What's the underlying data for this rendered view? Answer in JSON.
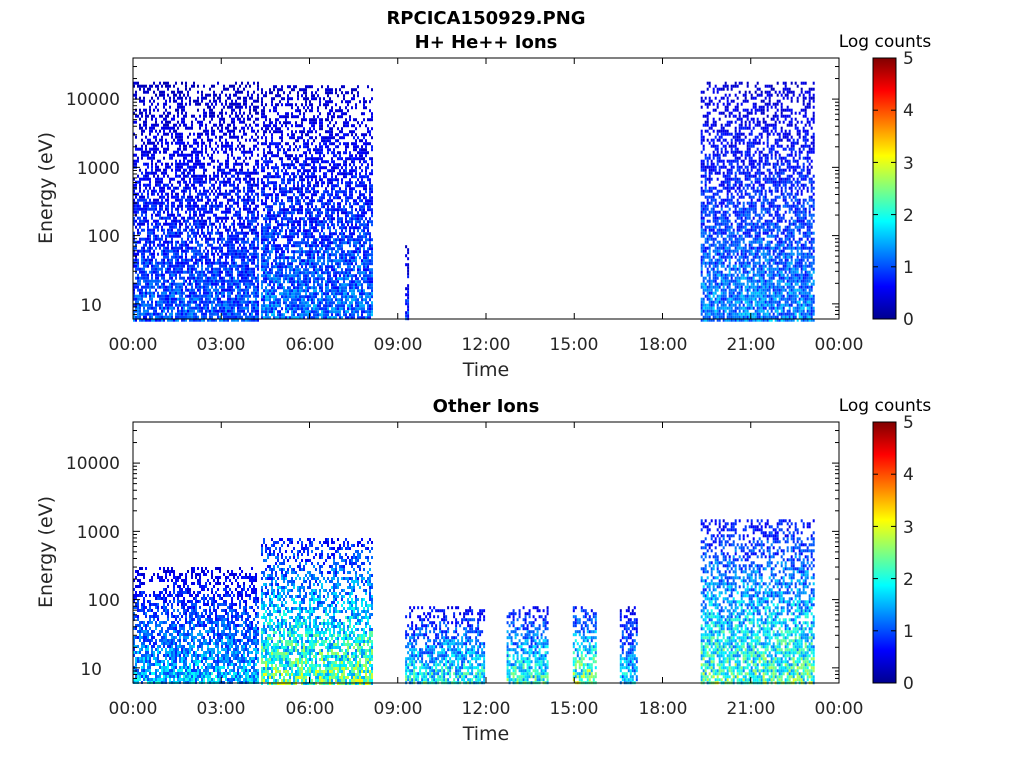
{
  "figure": {
    "title": "RPCICA150929.PNG"
  },
  "colorbar": {
    "label": "Log counts",
    "ticks": [
      "0",
      "1",
      "2",
      "3",
      "4",
      "5"
    ],
    "range": [
      0,
      5
    ],
    "colormap": "jet"
  },
  "chart_data": [
    {
      "type": "heatmap",
      "title": "H+ He++ Ions",
      "xlabel": "Time",
      "ylabel": "Energy (eV)",
      "x_ticks": [
        "00:00",
        "03:00",
        "06:00",
        "09:00",
        "12:00",
        "15:00",
        "18:00",
        "21:00",
        "00:00"
      ],
      "y_ticks": [
        "10",
        "100",
        "1000",
        "10000"
      ],
      "y_scale": "log",
      "xlim_hours": [
        0,
        24
      ],
      "ylim_eV": [
        6,
        40000
      ],
      "data_intervals": [
        {
          "start_h": 0.0,
          "end_h": 4.25,
          "min_eV": 6,
          "max_eV": 18000,
          "level": 0.8
        },
        {
          "start_h": 4.35,
          "end_h": 8.15,
          "min_eV": 6,
          "max_eV": 16000,
          "level": 0.9
        },
        {
          "start_h": 9.25,
          "end_h": 9.32,
          "min_eV": 6,
          "max_eV": 80,
          "level": 0.7
        },
        {
          "start_h": 19.3,
          "end_h": 23.15,
          "min_eV": 6,
          "max_eV": 18000,
          "level": 1.0
        }
      ]
    },
    {
      "type": "heatmap",
      "title": "Other Ions",
      "xlabel": "Time",
      "ylabel": "Energy (eV)",
      "x_ticks": [
        "00:00",
        "03:00",
        "06:00",
        "09:00",
        "12:00",
        "15:00",
        "18:00",
        "21:00",
        "00:00"
      ],
      "y_ticks": [
        "10",
        "100",
        "1000",
        "10000"
      ],
      "y_scale": "log",
      "xlim_hours": [
        0,
        24
      ],
      "ylim_eV": [
        6,
        40000
      ],
      "data_intervals": [
        {
          "start_h": 0.0,
          "end_h": 4.25,
          "min_eV": 6,
          "max_eV": 300,
          "level": 1.2
        },
        {
          "start_h": 4.35,
          "end_h": 8.15,
          "min_eV": 6,
          "max_eV": 800,
          "level": 1.8
        },
        {
          "start_h": 9.25,
          "end_h": 11.95,
          "min_eV": 6,
          "max_eV": 80,
          "level": 1.5
        },
        {
          "start_h": 12.7,
          "end_h": 14.1,
          "min_eV": 6,
          "max_eV": 80,
          "level": 1.6
        },
        {
          "start_h": 14.95,
          "end_h": 15.75,
          "min_eV": 6,
          "max_eV": 80,
          "level": 1.9
        },
        {
          "start_h": 16.55,
          "end_h": 17.1,
          "min_eV": 6,
          "max_eV": 80,
          "level": 1.3
        },
        {
          "start_h": 19.3,
          "end_h": 23.15,
          "min_eV": 6,
          "max_eV": 1500,
          "level": 1.7
        }
      ]
    }
  ]
}
